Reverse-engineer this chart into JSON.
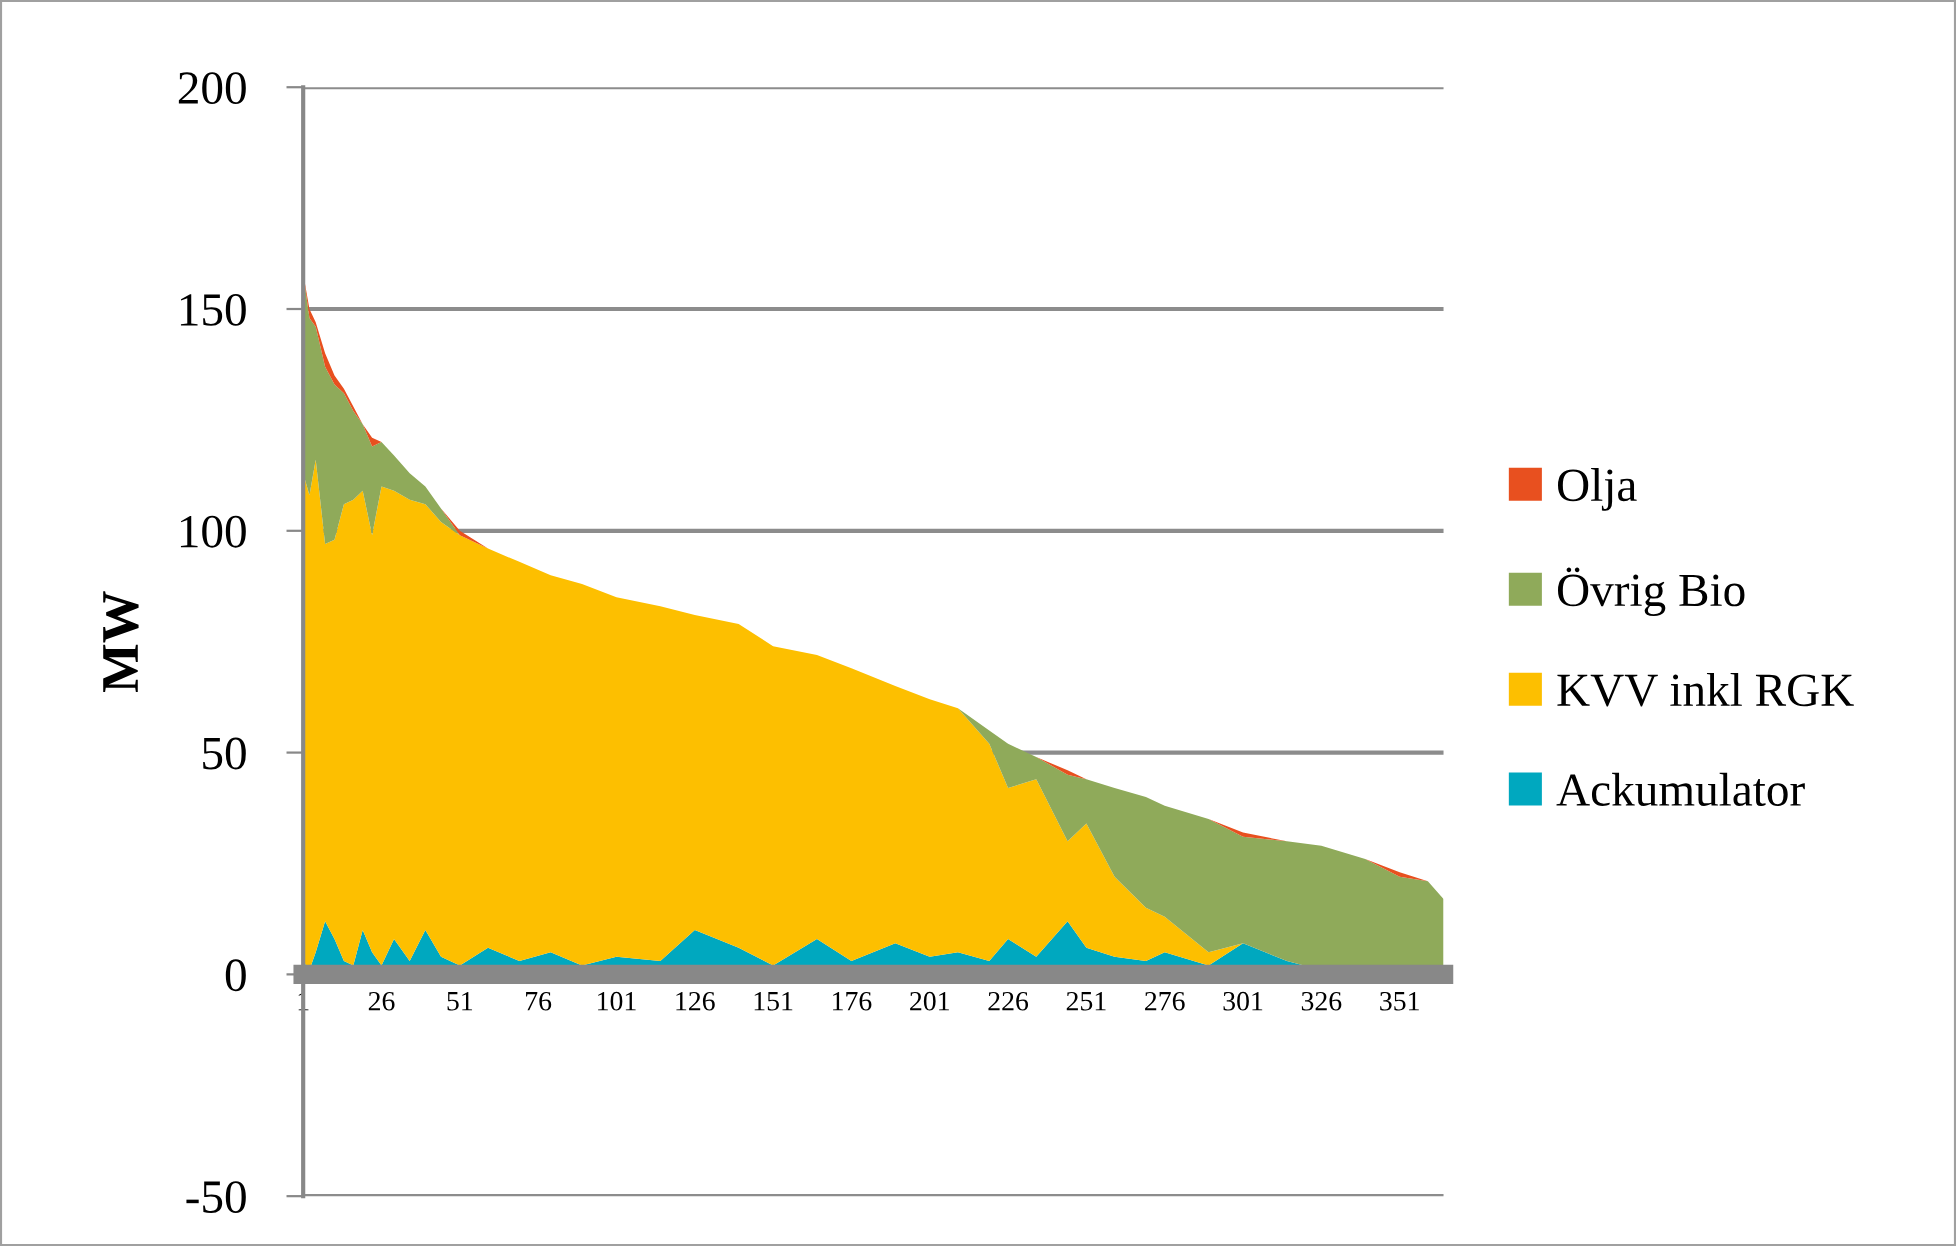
{
  "chart_data": {
    "type": "area",
    "stacked": true,
    "ylabel": "MW",
    "x": [
      1,
      3,
      5,
      8,
      11,
      14,
      17,
      20,
      23,
      26,
      30,
      35,
      40,
      45,
      51,
      60,
      70,
      80,
      90,
      101,
      115,
      126,
      140,
      151,
      165,
      176,
      190,
      201,
      210,
      220,
      226,
      235,
      245,
      251,
      260,
      270,
      276,
      290,
      301,
      315,
      326,
      340,
      351,
      360,
      365
    ],
    "series": [
      {
        "name": "Ackumulator",
        "color": "#00a8bf",
        "values": [
          3,
          1,
          5,
          12,
          8,
          3,
          2,
          10,
          5,
          2,
          8,
          3,
          10,
          4,
          2,
          6,
          3,
          5,
          2,
          4,
          3,
          10,
          6,
          2,
          8,
          3,
          7,
          4,
          5,
          3,
          8,
          4,
          12,
          6,
          4,
          3,
          5,
          2,
          7,
          3,
          1,
          2,
          1,
          0,
          0
        ]
      },
      {
        "name": "KVV inkl RGK",
        "color": "#fdbf00",
        "values": [
          110,
          107,
          111,
          85,
          90,
          103,
          105,
          99,
          94,
          108,
          101,
          104,
          96,
          98,
          97,
          90,
          90,
          85,
          86,
          81,
          80,
          71,
          73,
          72,
          64,
          66,
          58,
          58,
          55,
          49,
          34,
          40,
          18,
          28,
          18,
          12,
          8,
          3,
          0,
          0,
          0,
          0,
          0,
          1,
          1
        ]
      },
      {
        "name": "Övrig Bio",
        "color": "#8faa5a",
        "values": [
          45,
          40,
          30,
          40,
          35,
          25,
          20,
          15,
          20,
          10,
          8,
          6,
          4,
          3,
          0,
          0,
          0,
          0,
          0,
          0,
          0,
          0,
          0,
          0,
          0,
          0,
          0,
          0,
          0,
          3,
          10,
          5,
          15,
          10,
          20,
          25,
          25,
          30,
          24,
          27,
          28,
          24,
          21,
          20,
          16
        ]
      },
      {
        "name": "Olja",
        "color": "#e8501f",
        "values": [
          0,
          2,
          1,
          3,
          2,
          1,
          1,
          0,
          2,
          0,
          0,
          0,
          0,
          0,
          1,
          0,
          0,
          0,
          0,
          0,
          0,
          0,
          0,
          0,
          0,
          0,
          0,
          0,
          0,
          0,
          0,
          0,
          1,
          0,
          0,
          0,
          0,
          0,
          1,
          0,
          0,
          0,
          1,
          0,
          0
        ]
      }
    ],
    "xlim": [
      1,
      365
    ],
    "xticks": [
      1,
      26,
      51,
      76,
      101,
      126,
      151,
      176,
      201,
      226,
      251,
      276,
      301,
      326,
      351
    ],
    "ylim": [
      -50,
      200
    ],
    "yticks": [
      -50,
      0,
      50,
      100,
      150,
      200
    ],
    "grid": "y",
    "legend": "right"
  }
}
